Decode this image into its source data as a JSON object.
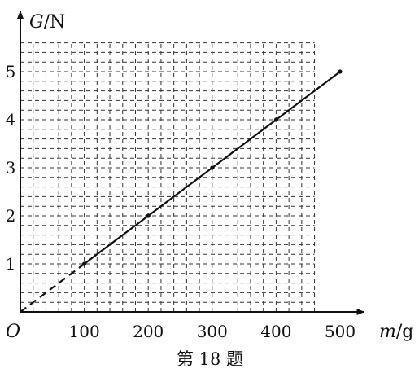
{
  "chart_data": {
    "type": "line",
    "x": [
      0,
      100,
      200,
      300,
      400,
      500
    ],
    "y": [
      0,
      1,
      2,
      3,
      4,
      5
    ],
    "points_marked": [
      100,
      200,
      300,
      400,
      500
    ],
    "extrapolated_segment": {
      "from": 0,
      "to": 100,
      "style": "dashed"
    },
    "x_ticks": [
      "100",
      "200",
      "300",
      "400",
      "500"
    ],
    "y_ticks": [
      "1",
      "2",
      "3",
      "4",
      "5"
    ],
    "xlim": [
      0,
      540
    ],
    "ylim": [
      0,
      5.6
    ],
    "grid": true,
    "grid_style": "dashed",
    "origin_label": "O",
    "y_axis_label": {
      "var": "G",
      "unit": "/N"
    },
    "x_axis_label": {
      "var": "m",
      "unit": "/g"
    }
  },
  "caption": "第 18 题"
}
